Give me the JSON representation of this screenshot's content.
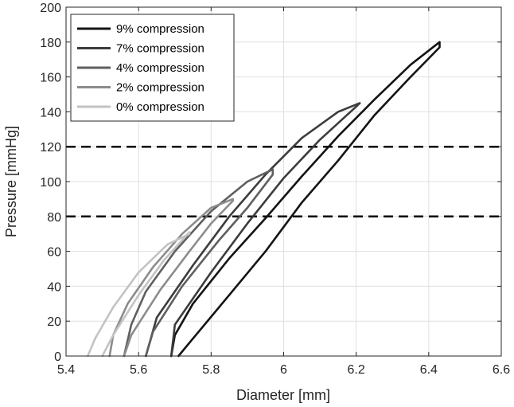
{
  "chart_data": {
    "type": "line",
    "title": "",
    "xlabel": "Diameter [mm]",
    "ylabel": "Pressure [mmHg]",
    "xlim": [
      5.4,
      6.6
    ],
    "ylim": [
      0,
      200
    ],
    "xticks": [
      5.4,
      5.6,
      5.8,
      6.0,
      6.2,
      6.4,
      6.6
    ],
    "xtick_labels": [
      "5.4",
      "5.6",
      "5.8",
      "6",
      "6.2",
      "6.4",
      "6.6"
    ],
    "yticks": [
      0,
      20,
      40,
      60,
      80,
      100,
      120,
      140,
      160,
      180,
      200
    ],
    "ytick_labels": [
      "0",
      "20",
      "40",
      "60",
      "80",
      "100",
      "120",
      "140",
      "160",
      "180",
      "200"
    ],
    "grid": true,
    "legend_position": "top-left",
    "reference_lines": [
      {
        "y": 80,
        "style": "dashed",
        "color": "#000000"
      },
      {
        "y": 120,
        "style": "dashed",
        "color": "#000000"
      }
    ],
    "series": [
      {
        "name": "9% compression",
        "color": "#141414",
        "loading": [
          [
            5.71,
            0
          ],
          [
            5.75,
            10
          ],
          [
            5.85,
            35
          ],
          [
            5.95,
            60
          ],
          [
            6.05,
            88
          ],
          [
            6.15,
            112
          ],
          [
            6.25,
            138
          ],
          [
            6.35,
            160
          ],
          [
            6.43,
            177
          ]
        ],
        "unloading": [
          [
            6.43,
            180
          ],
          [
            6.35,
            167
          ],
          [
            6.25,
            147
          ],
          [
            6.15,
            126
          ],
          [
            6.05,
            103
          ],
          [
            5.95,
            79
          ],
          [
            5.85,
            56
          ],
          [
            5.75,
            30
          ],
          [
            5.7,
            12
          ],
          [
            5.69,
            0
          ]
        ]
      },
      {
        "name": "7% compression",
        "color": "#3c3c3c",
        "loading": [
          [
            5.69,
            0
          ],
          [
            5.7,
            18
          ],
          [
            5.8,
            48
          ],
          [
            5.9,
            76
          ],
          [
            6.0,
            102
          ],
          [
            6.1,
            124
          ],
          [
            6.2,
            143
          ]
        ],
        "unloading": [
          [
            6.21,
            145
          ],
          [
            6.15,
            140
          ],
          [
            6.05,
            125
          ],
          [
            5.95,
            104
          ],
          [
            5.85,
            80
          ],
          [
            5.75,
            52
          ],
          [
            5.65,
            22
          ],
          [
            5.62,
            0
          ]
        ]
      },
      {
        "name": "4% compression",
        "color": "#5f5f5f",
        "loading": [
          [
            5.62,
            0
          ],
          [
            5.64,
            14
          ],
          [
            5.72,
            40
          ],
          [
            5.82,
            66
          ],
          [
            5.9,
            85
          ],
          [
            5.97,
            104
          ]
        ],
        "unloading": [
          [
            5.97,
            107
          ],
          [
            5.9,
            100
          ],
          [
            5.8,
            83
          ],
          [
            5.7,
            60
          ],
          [
            5.62,
            37
          ],
          [
            5.58,
            18
          ],
          [
            5.56,
            0
          ]
        ]
      },
      {
        "name": "2% compression",
        "color": "#8c8c8c",
        "loading": [
          [
            5.56,
            0
          ],
          [
            5.58,
            12
          ],
          [
            5.66,
            38
          ],
          [
            5.74,
            60
          ],
          [
            5.8,
            76
          ],
          [
            5.86,
            89
          ]
        ],
        "unloading": [
          [
            5.86,
            90
          ],
          [
            5.8,
            85
          ],
          [
            5.72,
            70
          ],
          [
            5.64,
            51
          ],
          [
            5.57,
            30
          ],
          [
            5.53,
            12
          ],
          [
            5.52,
            0
          ]
        ]
      },
      {
        "name": "0% compression",
        "color": "#c3c3c3",
        "loading": [
          [
            5.5,
            0
          ],
          [
            5.53,
            12
          ],
          [
            5.6,
            35
          ],
          [
            5.67,
            55
          ],
          [
            5.74,
            71
          ]
        ],
        "unloading": [
          [
            5.74,
            70
          ],
          [
            5.68,
            64
          ],
          [
            5.6,
            48
          ],
          [
            5.53,
            28
          ],
          [
            5.48,
            10
          ],
          [
            5.46,
            0
          ]
        ]
      }
    ]
  }
}
